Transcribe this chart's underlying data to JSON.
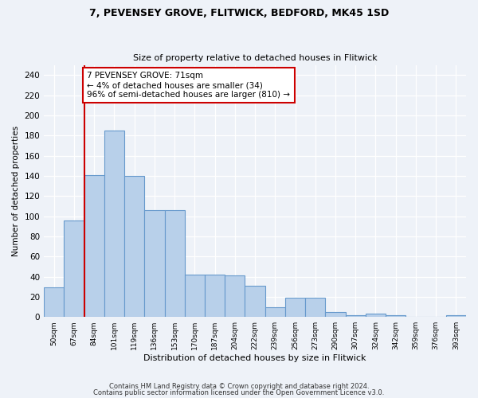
{
  "title1": "7, PEVENSEY GROVE, FLITWICK, BEDFORD, MK45 1SD",
  "title2": "Size of property relative to detached houses in Flitwick",
  "xlabel": "Distribution of detached houses by size in Flitwick",
  "ylabel": "Number of detached properties",
  "categories": [
    "50sqm",
    "67sqm",
    "84sqm",
    "101sqm",
    "119sqm",
    "136sqm",
    "153sqm",
    "170sqm",
    "187sqm",
    "204sqm",
    "222sqm",
    "239sqm",
    "256sqm",
    "273sqm",
    "290sqm",
    "307sqm",
    "324sqm",
    "342sqm",
    "359sqm",
    "376sqm",
    "393sqm"
  ],
  "values": [
    29,
    96,
    141,
    185,
    140,
    106,
    106,
    42,
    42,
    41,
    31,
    10,
    19,
    19,
    5,
    2,
    3,
    2,
    0,
    0,
    2
  ],
  "bar_color": "#b8d0ea",
  "bar_edge_color": "#6699cc",
  "background_color": "#eef2f8",
  "red_line_x": 1.5,
  "annotation_text": "7 PEVENSEY GROVE: 71sqm\n← 4% of detached houses are smaller (34)\n96% of semi-detached houses are larger (810) →",
  "annotation_box_color": "#ffffff",
  "annotation_box_edge": "#cc0000",
  "ylim": [
    0,
    250
  ],
  "yticks": [
    0,
    20,
    40,
    60,
    80,
    100,
    120,
    140,
    160,
    180,
    200,
    220,
    240
  ],
  "footer1": "Contains HM Land Registry data © Crown copyright and database right 2024.",
  "footer2": "Contains public sector information licensed under the Open Government Licence v3.0."
}
